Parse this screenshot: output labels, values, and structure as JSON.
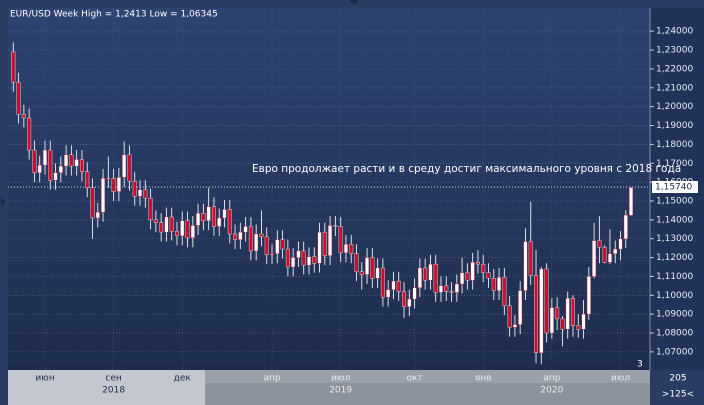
{
  "chart_data": {
    "type": "candlestick",
    "title": "EUR/USD Week High = 1,2413 Low = 1,06345",
    "annotation": "Евро продолжает расти и в среду достиг максимального уровня с 2018 года",
    "categories": [
      null,
      null,
      null,
      null,
      null,
      null,
      "июн",
      null,
      null,
      null,
      null,
      null,
      null,
      null,
      null,
      null,
      null,
      null,
      null,
      "сен",
      null,
      null,
      null,
      null,
      null,
      null,
      null,
      null,
      null,
      null,
      null,
      null,
      "дек",
      null,
      null,
      null,
      null,
      null,
      null,
      null,
      null,
      null,
      null,
      null,
      null,
      null,
      null,
      null,
      null,
      "апр",
      null,
      null,
      null,
      null,
      null,
      null,
      null,
      null,
      null,
      null,
      null,
      null,
      "июл",
      null,
      null,
      null,
      null,
      null,
      null,
      null,
      null,
      null,
      null,
      null,
      null,
      null,
      "окт",
      null,
      null,
      null,
      null,
      null,
      null,
      null,
      null,
      null,
      null,
      null,
      null,
      "янв",
      null,
      null,
      null,
      null,
      null,
      null,
      null,
      null,
      null,
      null,
      null,
      null,
      "апр",
      null,
      null,
      null,
      null,
      null,
      null,
      null,
      null,
      null,
      null,
      null,
      null,
      "июл",
      null,
      null
    ],
    "years": [
      null,
      null,
      null,
      null,
      null,
      null,
      null,
      null,
      null,
      null,
      null,
      null,
      null,
      null,
      null,
      null,
      null,
      null,
      null,
      "2018",
      null,
      null,
      null,
      null,
      null,
      null,
      null,
      null,
      null,
      null,
      null,
      null,
      null,
      null,
      null,
      null,
      null,
      null,
      null,
      null,
      null,
      null,
      null,
      null,
      null,
      null,
      null,
      null,
      null,
      null,
      null,
      null,
      null,
      null,
      null,
      null,
      null,
      null,
      null,
      null,
      null,
      null,
      "2019",
      null,
      null,
      null,
      null,
      null,
      null,
      null,
      null,
      null,
      null,
      null,
      null,
      null,
      null,
      null,
      null,
      null,
      null,
      null,
      null,
      null,
      null,
      null,
      null,
      null,
      null,
      null,
      null,
      null,
      null,
      null,
      null,
      null,
      null,
      null,
      null,
      null,
      null,
      null,
      "2020",
      null,
      null,
      null,
      null,
      null,
      null,
      null,
      null,
      null,
      null,
      null,
      null,
      null,
      null,
      null
    ],
    "open": [
      1.229,
      1.213,
      1.196,
      1.194,
      1.177,
      1.165,
      1.169,
      1.177,
      1.161,
      1.165,
      1.1685,
      1.1745,
      1.1685,
      1.172,
      1.1655,
      1.157,
      1.141,
      1.144,
      1.162,
      1.162,
      1.155,
      1.1625,
      1.1745,
      1.1605,
      1.1525,
      1.156,
      1.1515,
      1.14,
      1.1385,
      1.1335,
      1.1415,
      1.134,
      1.1315,
      1.1395,
      1.1305,
      1.137,
      1.1435,
      1.1395,
      1.147,
      1.1365,
      1.141,
      1.1455,
      1.1325,
      1.1295,
      1.1335,
      1.1365,
      1.1235,
      1.1325,
      1.131,
      1.1215,
      1.122,
      1.1295,
      1.1245,
      1.115,
      1.12,
      1.1235,
      1.116,
      1.1205,
      1.117,
      1.1335,
      1.121,
      1.137,
      1.1365,
      1.1225,
      1.127,
      1.122,
      1.1125,
      1.111,
      1.12,
      1.109,
      1.1145,
      1.099,
      1.103,
      1.1075,
      1.102,
      1.094,
      1.098,
      1.104,
      1.1145,
      1.108,
      1.1165,
      1.1015,
      1.105,
      1.102,
      1.1015,
      1.106,
      1.112,
      1.108,
      1.1175,
      1.1165,
      1.112,
      1.109,
      1.1025,
      1.1095,
      1.0945,
      1.083,
      1.0845,
      1.1025,
      1.1285,
      1.1105,
      1.0695,
      1.114,
      1.08,
      1.0935,
      1.0875,
      1.082,
      1.0985,
      1.084,
      1.082,
      1.09,
      1.11,
      1.129,
      1.1255,
      1.1175,
      1.122,
      1.1245,
      1.13,
      1.1425
    ],
    "high": [
      1.234,
      1.218,
      1.201,
      1.199,
      1.182,
      1.174,
      1.182,
      1.182,
      1.17,
      1.1735,
      1.1795,
      1.1795,
      1.177,
      1.177,
      1.1705,
      1.162,
      1.149,
      1.167,
      1.1735,
      1.167,
      1.1675,
      1.1815,
      1.1795,
      1.1655,
      1.161,
      1.161,
      1.1565,
      1.145,
      1.1435,
      1.1465,
      1.1465,
      1.139,
      1.1445,
      1.1445,
      1.142,
      1.1485,
      1.1485,
      1.157,
      1.152,
      1.146,
      1.1505,
      1.1505,
      1.1375,
      1.1385,
      1.1415,
      1.1415,
      1.1375,
      1.145,
      1.136,
      1.127,
      1.1345,
      1.1345,
      1.1295,
      1.125,
      1.1285,
      1.1285,
      1.1255,
      1.1255,
      1.1385,
      1.1385,
      1.142,
      1.142,
      1.1415,
      1.132,
      1.132,
      1.127,
      1.1175,
      1.125,
      1.125,
      1.1195,
      1.1195,
      1.108,
      1.1125,
      1.1125,
      1.107,
      1.103,
      1.109,
      1.1195,
      1.1195,
      1.1215,
      1.1215,
      1.11,
      1.11,
      1.107,
      1.111,
      1.12,
      1.117,
      1.1225,
      1.124,
      1.1215,
      1.117,
      1.114,
      1.1145,
      1.1145,
      1.0995,
      1.0895,
      1.1075,
      1.1355,
      1.1495,
      1.124,
      1.115,
      1.117,
      1.0985,
      1.099,
      1.089,
      1.102,
      1.1,
      1.09,
      1.0975,
      1.115,
      1.1385,
      1.142,
      1.1265,
      1.135,
      1.129,
      1.134,
      1.145,
      1.1575
    ],
    "low": [
      1.208,
      1.191,
      1.189,
      1.172,
      1.16,
      1.16,
      1.164,
      1.156,
      1.156,
      1.16,
      1.1635,
      1.1635,
      1.1635,
      1.1605,
      1.152,
      1.13,
      1.136,
      1.139,
      1.157,
      1.15,
      1.15,
      1.1575,
      1.1555,
      1.1475,
      1.1475,
      1.1465,
      1.135,
      1.1335,
      1.1285,
      1.1285,
      1.129,
      1.1265,
      1.1265,
      1.1255,
      1.1255,
      1.132,
      1.1345,
      1.1345,
      1.1315,
      1.1315,
      1.136,
      1.1275,
      1.1245,
      1.1245,
      1.1285,
      1.1185,
      1.1185,
      1.126,
      1.1165,
      1.1165,
      1.117,
      1.1195,
      1.11,
      1.11,
      1.115,
      1.111,
      1.111,
      1.112,
      1.112,
      1.116,
      1.116,
      1.1315,
      1.1175,
      1.1175,
      1.117,
      1.1075,
      1.103,
      1.106,
      1.104,
      1.104,
      1.094,
      1.094,
      1.098,
      1.097,
      1.088,
      1.089,
      1.093,
      1.099,
      1.103,
      1.103,
      1.0965,
      1.0965,
      1.097,
      1.0965,
      1.0965,
      1.101,
      1.103,
      1.103,
      1.1115,
      1.107,
      1.104,
      1.0975,
      1.0975,
      1.0895,
      1.078,
      1.078,
      1.0795,
      1.0975,
      1.1055,
      1.064,
      1.0635,
      1.075,
      1.077,
      1.0815,
      1.073,
      1.077,
      1.078,
      1.0775,
      1.077,
      1.087,
      1.109,
      1.117,
      1.117,
      1.1165,
      1.117,
      1.1185,
      1.125,
      1.142
    ],
    "close": [
      1.213,
      1.196,
      1.194,
      1.177,
      1.165,
      1.169,
      1.177,
      1.161,
      1.165,
      1.1685,
      1.1745,
      1.1685,
      1.172,
      1.1655,
      1.157,
      1.141,
      1.144,
      1.162,
      1.162,
      1.155,
      1.1625,
      1.1745,
      1.1605,
      1.1525,
      1.156,
      1.1515,
      1.14,
      1.1385,
      1.1335,
      1.1415,
      1.134,
      1.1315,
      1.1395,
      1.1305,
      1.137,
      1.1435,
      1.1395,
      1.147,
      1.1365,
      1.141,
      1.1455,
      1.1325,
      1.1295,
      1.1335,
      1.1365,
      1.1235,
      1.1325,
      1.131,
      1.1215,
      1.122,
      1.1295,
      1.1245,
      1.115,
      1.12,
      1.1235,
      1.116,
      1.1205,
      1.117,
      1.1335,
      1.121,
      1.137,
      1.1365,
      1.1225,
      1.127,
      1.122,
      1.1125,
      1.111,
      1.12,
      1.109,
      1.1145,
      1.099,
      1.103,
      1.1075,
      1.102,
      1.094,
      1.098,
      1.104,
      1.1145,
      1.108,
      1.1165,
      1.1015,
      1.105,
      1.102,
      1.1015,
      1.106,
      1.112,
      1.108,
      1.1175,
      1.1165,
      1.112,
      1.109,
      1.1025,
      1.1095,
      1.0945,
      1.083,
      1.0845,
      1.1025,
      1.1285,
      1.1105,
      1.0695,
      1.114,
      1.08,
      1.0935,
      1.0875,
      1.082,
      1.0985,
      1.084,
      1.082,
      1.09,
      1.11,
      1.129,
      1.1255,
      1.1175,
      1.122,
      1.1245,
      1.13,
      1.1425,
      1.157
    ],
    "up_color": "#ffffff",
    "down_color": "#c8102e",
    "ylim": [
      1.0604,
      1.2523
    ],
    "yticks": [
      {
        "value": 1.07,
        "label": "1,07000"
      },
      {
        "value": 1.08,
        "label": "1,08000"
      },
      {
        "value": 1.09,
        "label": "1,09000"
      },
      {
        "value": 1.1,
        "label": "1,10000"
      },
      {
        "value": 1.11,
        "label": "1,11000"
      },
      {
        "value": 1.12,
        "label": "1,12000"
      },
      {
        "value": 1.13,
        "label": "1,13000"
      },
      {
        "value": 1.14,
        "label": "1,14000"
      },
      {
        "value": 1.15,
        "label": "1,15000"
      },
      {
        "value": 1.16,
        "label": "1,16000"
      },
      {
        "value": 1.17,
        "label": "1,17000"
      },
      {
        "value": 1.18,
        "label": "1,18000"
      },
      {
        "value": 1.19,
        "label": "1,19000"
      },
      {
        "value": 1.2,
        "label": "1,20000"
      },
      {
        "value": 1.21,
        "label": "1,21000"
      },
      {
        "value": 1.22,
        "label": "1,22000"
      },
      {
        "value": 1.23,
        "label": "1,23000"
      },
      {
        "value": 1.24,
        "label": "1,24000"
      }
    ],
    "grid": true,
    "last_price": {
      "value": 1.1574,
      "label": "1,15740"
    },
    "status": {
      "marker": "3",
      "zoom": "205",
      "visible": ">125<"
    }
  }
}
